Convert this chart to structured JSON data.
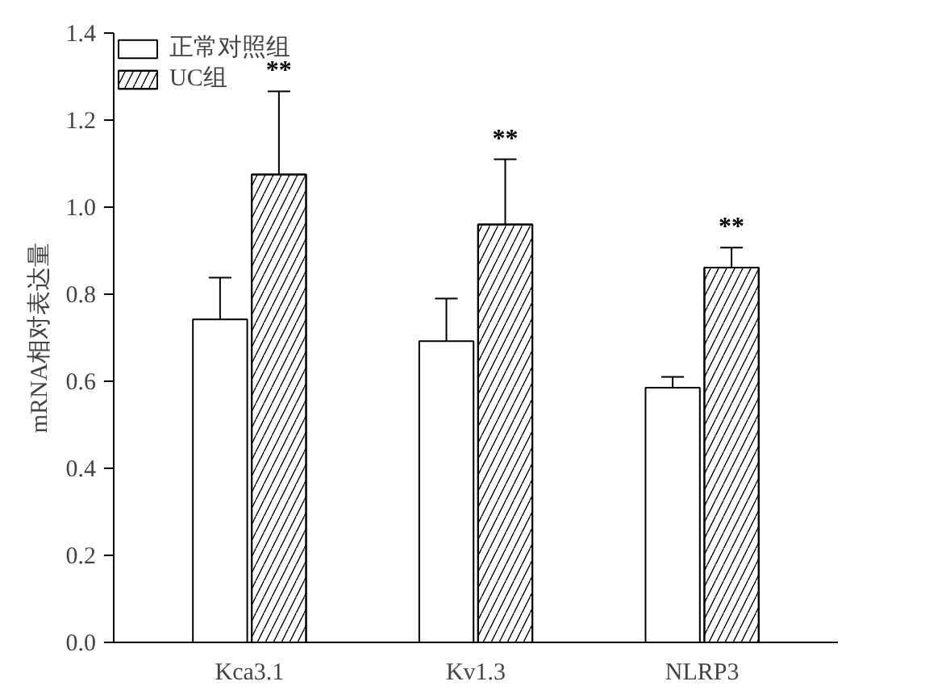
{
  "chart_data": {
    "type": "bar",
    "ylabel": "mRNA相对表达量",
    "categories": [
      "Kca3.1",
      "Kv1.3",
      "NLRP3"
    ],
    "series": [
      {
        "name": "正常对照组",
        "color": "#ffffff",
        "values": [
          0.742,
          0.692,
          0.585
        ],
        "errors": [
          [
            0.742,
            0.838
          ],
          [
            0.692,
            0.79
          ],
          [
            0.585,
            0.61
          ]
        ]
      },
      {
        "name": "UC组",
        "color": "#ffffff",
        "values": [
          1.075,
          0.96,
          0.861
        ],
        "errors": [
          [
            1.075,
            1.266
          ],
          [
            0.96,
            1.11
          ],
          [
            0.861,
            0.907
          ]
        ]
      }
    ],
    "ylim": [
      0,
      1.4
    ],
    "yticks": [
      {
        "value": 0,
        "label": "0.0"
      },
      {
        "value": 0.2,
        "label": "0.2"
      },
      {
        "value": 0.4,
        "label": "0.4"
      },
      {
        "value": 0.6,
        "label": "0.6"
      },
      {
        "value": 0.8,
        "label": "0.8"
      },
      {
        "value": 1.0,
        "label": "1.0"
      },
      {
        "value": 1.2,
        "label": "1.2"
      },
      {
        "value": 1.4,
        "label": "1.4"
      }
    ],
    "annotations": [
      "**",
      "**",
      "**"
    ],
    "grid": false,
    "legend": "top left"
  }
}
